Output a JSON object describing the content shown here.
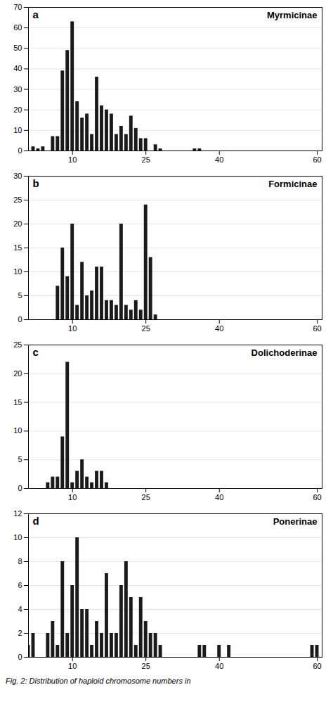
{
  "caption": "Fig. 2: Distribution of haploid chromosome numbers in",
  "chart_data": [
    {
      "type": "bar",
      "title": "Myrmicinae",
      "annotations": [
        "a"
      ],
      "x": [
        1,
        2,
        3,
        4,
        5,
        6,
        7,
        8,
        9,
        10,
        11,
        12,
        13,
        14,
        15,
        16,
        17,
        18,
        19,
        20,
        21,
        22,
        23,
        24,
        25,
        26,
        27,
        28,
        29,
        30,
        31,
        32,
        33,
        34,
        35,
        36,
        37,
        38,
        39,
        40,
        41,
        42,
        43,
        44,
        45,
        46,
        47,
        48,
        49,
        50,
        51,
        52,
        53,
        54,
        55,
        56,
        57,
        58,
        59,
        60
      ],
      "values": [
        0,
        2,
        1,
        2,
        0,
        7,
        7,
        39,
        49,
        63,
        24,
        16,
        18,
        8,
        36,
        22,
        20,
        18,
        8,
        12,
        8,
        17,
        11,
        6,
        6,
        0,
        3,
        1,
        0,
        0,
        0,
        0,
        0,
        0,
        1,
        1,
        0,
        0,
        0,
        0,
        0,
        0,
        0,
        0,
        0,
        0,
        0,
        0,
        0,
        0,
        0,
        0,
        0,
        0,
        0,
        0,
        0,
        0,
        0,
        0
      ],
      "color": "#1a1a1a",
      "xlim": [
        1,
        61
      ],
      "xticks": [
        10,
        25,
        40,
        60
      ],
      "ylim": [
        0,
        70
      ],
      "yticks": [
        0,
        10,
        20,
        30,
        40,
        50,
        60,
        70
      ],
      "grid": true
    },
    {
      "type": "bar",
      "title": "Formicinae",
      "annotations": [
        "b"
      ],
      "x": [
        1,
        2,
        3,
        4,
        5,
        6,
        7,
        8,
        9,
        10,
        11,
        12,
        13,
        14,
        15,
        16,
        17,
        18,
        19,
        20,
        21,
        22,
        23,
        24,
        25,
        26,
        27,
        28,
        29,
        30,
        31,
        32,
        33,
        34,
        35,
        36,
        37,
        38,
        39,
        40,
        41,
        42,
        43,
        44,
        45,
        46,
        47,
        48,
        49,
        50,
        51,
        52,
        53,
        54,
        55,
        56,
        57,
        58,
        59,
        60
      ],
      "values": [
        0,
        0,
        0,
        0,
        0,
        0,
        7,
        15,
        9,
        20,
        3,
        12,
        5,
        6,
        11,
        11,
        4,
        4,
        3,
        20,
        3,
        2,
        4,
        2,
        24,
        13,
        1,
        0,
        0,
        0,
        0,
        0,
        0,
        0,
        0,
        0,
        0,
        0,
        0,
        0,
        0,
        0,
        0,
        0,
        0,
        0,
        0,
        0,
        0,
        0,
        0,
        0,
        0,
        0,
        0,
        0,
        0,
        0,
        0,
        0
      ],
      "color": "#1a1a1a",
      "xlim": [
        1,
        61
      ],
      "xticks": [
        10,
        25,
        40,
        60
      ],
      "ylim": [
        0,
        30
      ],
      "yticks": [
        0,
        5,
        10,
        15,
        20,
        25,
        30
      ],
      "grid": true
    },
    {
      "type": "bar",
      "title": "Dolichoderinae",
      "annotations": [
        "c"
      ],
      "x": [
        1,
        2,
        3,
        4,
        5,
        6,
        7,
        8,
        9,
        10,
        11,
        12,
        13,
        14,
        15,
        16,
        17,
        18,
        19,
        20,
        21,
        22,
        23,
        24,
        25,
        26,
        27,
        28,
        29,
        30,
        31,
        32,
        33,
        34,
        35,
        36,
        37,
        38,
        39,
        40,
        41,
        42,
        43,
        44,
        45,
        46,
        47,
        48,
        49,
        50,
        51,
        52,
        53,
        54,
        55,
        56,
        57,
        58,
        59,
        60
      ],
      "values": [
        0,
        0,
        0,
        0,
        1,
        2,
        2,
        9,
        22,
        1,
        3,
        5,
        2,
        1,
        3,
        3,
        1,
        0,
        0,
        0,
        0,
        0,
        0,
        0,
        0,
        0,
        0,
        0,
        0,
        0,
        0,
        0,
        0,
        0,
        0,
        0,
        0,
        0,
        0,
        0,
        0,
        0,
        0,
        0,
        0,
        0,
        0,
        0,
        0,
        0,
        0,
        0,
        0,
        0,
        0,
        0,
        0,
        0,
        0,
        0
      ],
      "color": "#1a1a1a",
      "xlim": [
        1,
        61
      ],
      "xticks": [
        10,
        25,
        40,
        60
      ],
      "ylim": [
        0,
        25
      ],
      "yticks": [
        0,
        5,
        10,
        15,
        20,
        25
      ],
      "grid": true
    },
    {
      "type": "bar",
      "title": "Ponerinae",
      "annotations": [
        "d"
      ],
      "x": [
        1,
        2,
        3,
        4,
        5,
        6,
        7,
        8,
        9,
        10,
        11,
        12,
        13,
        14,
        15,
        16,
        17,
        18,
        19,
        20,
        21,
        22,
        23,
        24,
        25,
        26,
        27,
        28,
        29,
        30,
        31,
        32,
        33,
        34,
        35,
        36,
        37,
        38,
        39,
        40,
        41,
        42,
        43,
        44,
        45,
        46,
        47,
        48,
        49,
        50,
        51,
        52,
        53,
        54,
        55,
        56,
        57,
        58,
        59,
        60
      ],
      "values": [
        1,
        2,
        0,
        0,
        2,
        3,
        1,
        8,
        2,
        6,
        10,
        4,
        4,
        1,
        3,
        2,
        7,
        2,
        2,
        6,
        8,
        5,
        1,
        5,
        3,
        2,
        2,
        1,
        0,
        0,
        0,
        0,
        0,
        0,
        0,
        1,
        1,
        0,
        0,
        1,
        0,
        1,
        0,
        0,
        0,
        0,
        0,
        0,
        0,
        0,
        0,
        0,
        0,
        0,
        0,
        0,
        0,
        0,
        1,
        1
      ],
      "color": "#1a1a1a",
      "xlim": [
        1,
        61
      ],
      "xticks": [
        10,
        25,
        40,
        60
      ],
      "ylim": [
        0,
        12
      ],
      "yticks": [
        0,
        2,
        4,
        6,
        8,
        10,
        12
      ],
      "grid": true
    }
  ]
}
